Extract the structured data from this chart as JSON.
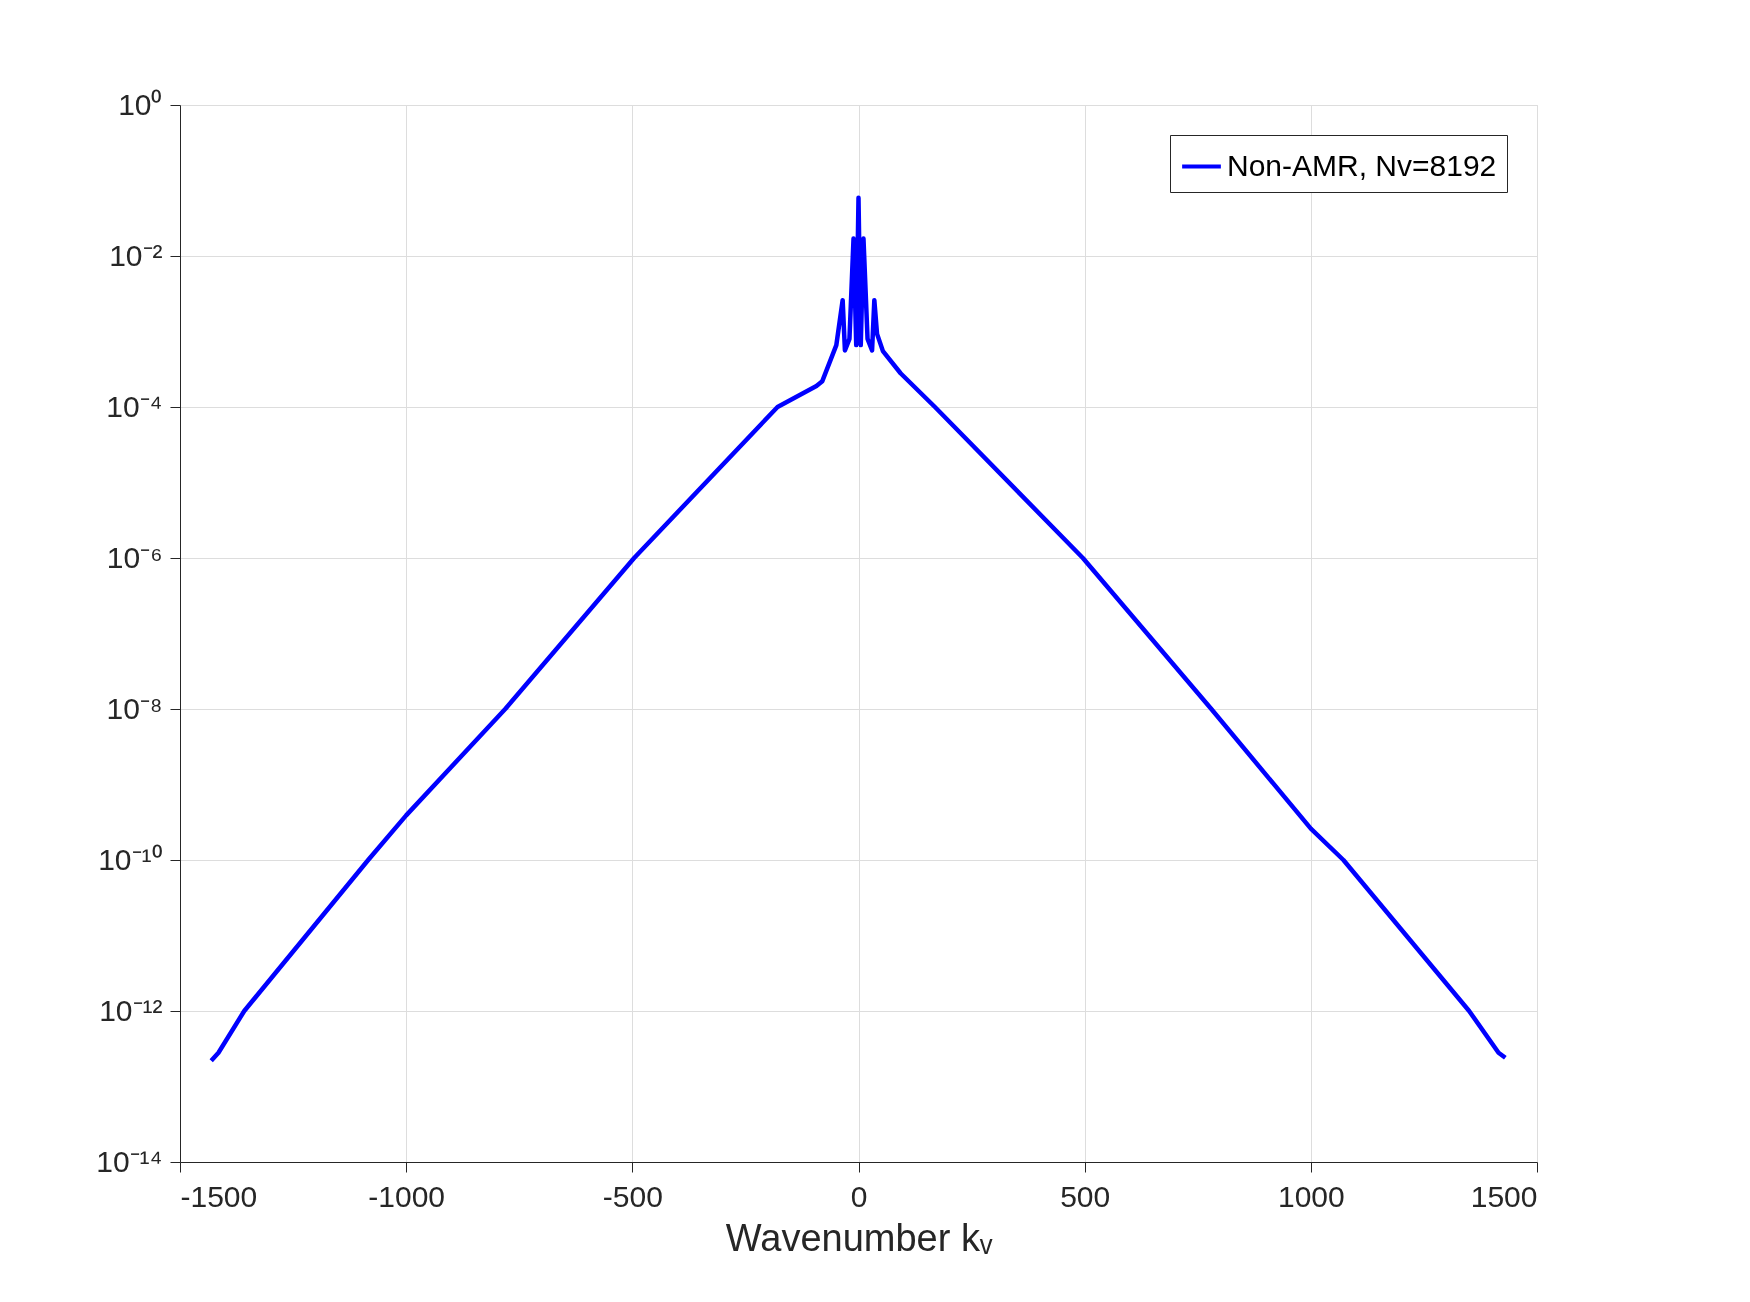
{
  "chart_data": {
    "type": "line",
    "xlabel": "Wavenumber kᵥ",
    "series": [
      {
        "name": "Non-AMR, Nv=8192",
        "color": "#0000ff",
        "x": [
          -1431,
          -1415,
          -1358,
          -1084,
          -1000,
          -781,
          -496,
          -179,
          -93,
          -80,
          -49,
          -35,
          -30,
          -20,
          -11,
          -5,
          0,
          5,
          11,
          20,
          30,
          35,
          41,
          54,
          93,
          169,
          496,
          780,
          1000,
          1072,
          1350,
          1415,
          1430
        ],
        "values": [
          2.2e-13,
          2.8e-13,
          1e-12,
          1e-10,
          3.9e-10,
          1e-08,
          1e-06,
          0.0001,
          0.00019,
          0.00022,
          0.00066,
          0.0026,
          0.00056,
          0.0008,
          0.017,
          0.00066,
          0.059,
          0.00066,
          0.017,
          0.0008,
          0.00056,
          0.0026,
          0.00093,
          0.00055,
          0.00028,
          0.0001,
          1e-06,
          1e-08,
          2.6e-10,
          1e-10,
          1e-12,
          2.8e-13,
          2.4e-13
        ]
      }
    ],
    "xlim": [
      -1500,
      1500
    ],
    "xticks": [
      -1500,
      -1000,
      -500,
      0,
      500,
      1000,
      1500
    ],
    "ylim": [
      1e-14,
      1
    ],
    "log": true,
    "yticks": [
      {
        "value": 1e-14,
        "label": "10⁻¹⁴"
      },
      {
        "value": 1e-12,
        "label": "10⁻¹²"
      },
      {
        "value": 1e-10,
        "label": "10⁻¹⁰"
      },
      {
        "value": 1e-08,
        "label": "10⁻⁸"
      },
      {
        "value": 1e-06,
        "label": "10⁻⁶"
      },
      {
        "value": 0.0001,
        "label": "10⁻⁴"
      },
      {
        "value": 0.01,
        "label": "10⁻²"
      },
      {
        "value": 1,
        "label": "10⁰"
      }
    ],
    "grid": true,
    "legend": "top right",
    "line_style": "solid",
    "marker": "none"
  }
}
